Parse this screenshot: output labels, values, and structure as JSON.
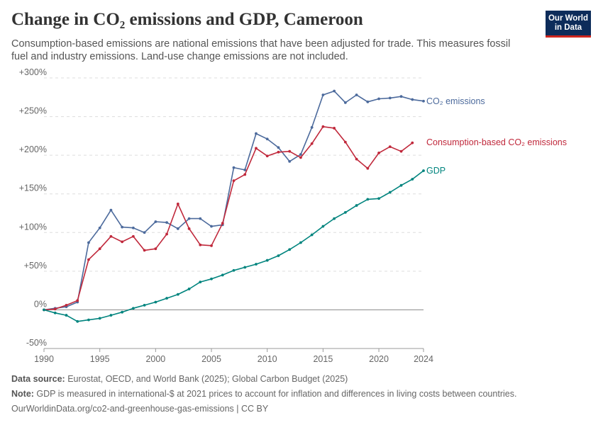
{
  "header": {
    "title": "Change in CO₂ emissions and GDP, Cameroon",
    "subtitle": "Consumption-based emissions are national emissions that have been adjusted for trade. This measures fossil fuel and industry emissions. Land-use change emissions are not included.",
    "logo_line1": "Our World",
    "logo_line2": "in Data"
  },
  "footer": {
    "source_label": "Data source:",
    "source_text": " Eurostat, OECD, and World Bank (2025); Global Carbon Budget (2025)",
    "note_label": "Note:",
    "note_text": " GDP is measured in international-$ at 2021 prices to account for inflation and differences in living costs between countries.",
    "url": "OurWorldinData.org/co2-and-greenhouse-gas-emissions | CC BY"
  },
  "chart_data": {
    "type": "line",
    "title": "Change in CO₂ emissions and GDP, Cameroon",
    "xlabel": "",
    "ylabel": "",
    "xlim": [
      1990,
      2024
    ],
    "ylim": [
      -50,
      300
    ],
    "x_ticks": [
      1990,
      1995,
      2000,
      2005,
      2010,
      2015,
      2020,
      2024
    ],
    "y_ticks": [
      -50,
      0,
      50,
      100,
      150,
      200,
      250,
      300
    ],
    "y_tick_labels": [
      "-50%",
      "0%",
      "+50%",
      "+100%",
      "+150%",
      "+200%",
      "+250%",
      "+300%"
    ],
    "grid": "horizontal dashed",
    "legend": "inline labels at line ends (right)",
    "series": [
      {
        "name": "CO₂ emissions",
        "color": "#4c6a9c",
        "x": [
          1990,
          1991,
          1992,
          1993,
          1994,
          1995,
          1996,
          1997,
          1998,
          1999,
          2000,
          2001,
          2002,
          2003,
          2004,
          2005,
          2006,
          2007,
          2008,
          2009,
          2010,
          2011,
          2012,
          2013,
          2014,
          2015,
          2016,
          2017,
          2018,
          2019,
          2020,
          2021,
          2022,
          2023,
          2024
        ],
        "values": [
          0,
          2,
          4,
          10,
          87,
          106,
          129,
          107,
          106,
          100,
          114,
          113,
          105,
          118,
          118,
          108,
          110,
          184,
          181,
          228,
          221,
          210,
          192,
          201,
          236,
          278,
          283,
          268,
          278,
          269,
          273,
          274,
          276,
          272,
          270
        ]
      },
      {
        "name": "Consumption-based CO₂ emissions",
        "color": "#c0283b",
        "x": [
          1990,
          1991,
          1992,
          1993,
          1994,
          1995,
          1996,
          1997,
          1998,
          1999,
          2000,
          2001,
          2002,
          2003,
          2004,
          2005,
          2006,
          2007,
          2008,
          2009,
          2010,
          2011,
          2012,
          2013,
          2014,
          2015,
          2016,
          2017,
          2018,
          2019,
          2020,
          2021,
          2022,
          2023
        ],
        "values": [
          0,
          1,
          6,
          12,
          65,
          79,
          95,
          88,
          95,
          77,
          79,
          98,
          137,
          105,
          84,
          83,
          112,
          167,
          175,
          209,
          199,
          204,
          205,
          197,
          215,
          237,
          235,
          217,
          195,
          183,
          203,
          211,
          205,
          216
        ]
      },
      {
        "name": "GDP",
        "color": "#00847e",
        "x": [
          1990,
          1991,
          1992,
          1993,
          1994,
          1995,
          1996,
          1997,
          1998,
          1999,
          2000,
          2001,
          2002,
          2003,
          2004,
          2005,
          2006,
          2007,
          2008,
          2009,
          2010,
          2011,
          2012,
          2013,
          2014,
          2015,
          2016,
          2017,
          2018,
          2019,
          2020,
          2021,
          2022,
          2023,
          2024
        ],
        "values": [
          0,
          -4,
          -7,
          -15,
          -13,
          -11,
          -7,
          -3,
          2,
          6,
          10,
          15,
          20,
          27,
          36,
          40,
          45,
          51,
          55,
          59,
          64,
          70,
          78,
          87,
          97,
          108,
          118,
          126,
          135,
          143,
          144,
          152,
          161,
          169,
          180
        ]
      }
    ]
  }
}
